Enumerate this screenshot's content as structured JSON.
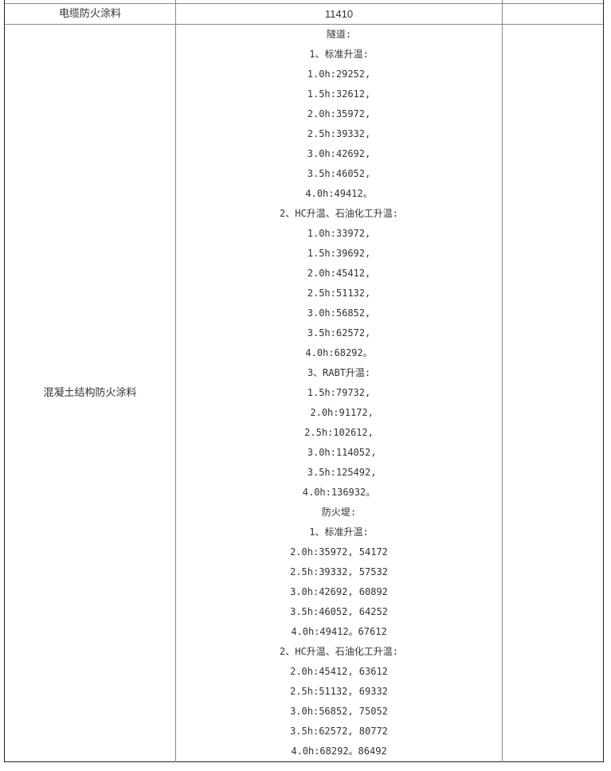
{
  "rows": [
    {
      "name": "电缆防火涂料",
      "value": "11410",
      "note": ""
    },
    {
      "name": "混凝土结构防火涂料",
      "note": "",
      "lines": [
        "隧道:",
        "1、标准升温:",
        "1.0h:29252,",
        "1.5h:32612,",
        "2.0h:35972,",
        "2.5h:39332,",
        "3.0h:42692,",
        "3.5h:46052,",
        "4.0h:49412。",
        "2、HC升温、石油化工升温:",
        "1.0h:33972,",
        "1.5h:39692,",
        "2.0h:45412,",
        "2.5h:51132,",
        "3.0h:56852,",
        "3.5h:62572,",
        "4.0h:68292。",
        "3、RABT升温:",
        "1.5h:79732,",
        " 2.0h:91172,",
        "2.5h:102612,",
        " 3.0h:114052,",
        " 3.5h:125492,",
        "4.0h:136932。",
        "防火堤:",
        "1、标准升温:",
        "2.0h:35972, 54172",
        "2.5h:39332, 57532",
        "3.0h:42692, 60892",
        "3.5h:46052, 64252",
        "4.0h:49412。67612",
        "2、HC升温、石油化工升温:",
        "2.0h:45412, 63612",
        "2.5h:51132, 69332",
        "3.0h:56852, 75052",
        "3.5h:62572, 80772",
        "4.0h:68292。86492"
      ]
    }
  ]
}
